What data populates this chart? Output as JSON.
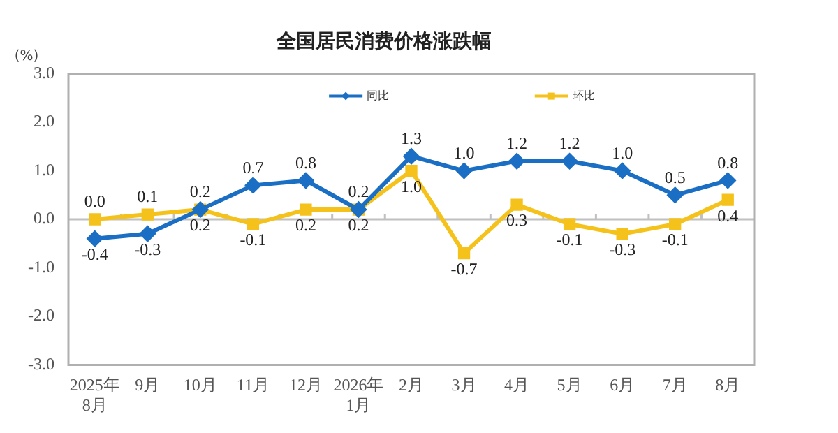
{
  "chart_data": {
    "type": "line",
    "title": "全国居民消费价格涨跌幅",
    "ylabel": "(%)",
    "categories": [
      "2025年\n8月",
      "9月",
      "10月",
      "11月",
      "12月",
      "2026年\n1月",
      "2月",
      "3月",
      "4月",
      "5月",
      "6月",
      "7月",
      "8月"
    ],
    "series": [
      {
        "name": "同比",
        "color": "#1a6fc4",
        "marker": "diamond",
        "values": [
          -0.4,
          -0.3,
          0.2,
          0.7,
          0.8,
          0.2,
          1.3,
          1.0,
          1.2,
          1.2,
          1.0,
          0.5,
          0.8
        ],
        "value_labels": [
          "-0.4",
          "-0.3",
          "0.2",
          "0.7",
          "0.8",
          "0.2",
          "1.3",
          "1.0",
          "1.2",
          "1.2",
          "1.0",
          "0.5",
          "0.8"
        ]
      },
      {
        "name": "环比",
        "color": "#f5c21b",
        "marker": "square",
        "values": [
          0.0,
          0.1,
          0.2,
          -0.1,
          0.2,
          0.2,
          1.0,
          -0.7,
          0.3,
          -0.1,
          -0.3,
          -0.1,
          0.4
        ],
        "value_labels": [
          "0.0",
          "0.1",
          "0.2",
          "-0.1",
          "0.2",
          "0.2",
          "1.0",
          "-0.7",
          "0.3",
          "-0.1",
          "-0.3",
          "-0.1",
          "0.4"
        ]
      }
    ],
    "ylim": [
      -3.0,
      3.0
    ],
    "yticks": [
      {
        "value": -3,
        "label": "-3.0"
      },
      {
        "value": -2,
        "label": "-2.0"
      },
      {
        "value": -1,
        "label": "-1.0"
      },
      {
        "value": 0,
        "label": "0.0"
      },
      {
        "value": 1,
        "label": "1.0"
      },
      {
        "value": 2,
        "label": "2.0"
      },
      {
        "value": 3,
        "label": "3.0"
      }
    ],
    "ref_lines": [
      {
        "axis": "y",
        "value": 0,
        "color": "#c0c0c0"
      }
    ],
    "grid": false,
    "legend": "top"
  }
}
